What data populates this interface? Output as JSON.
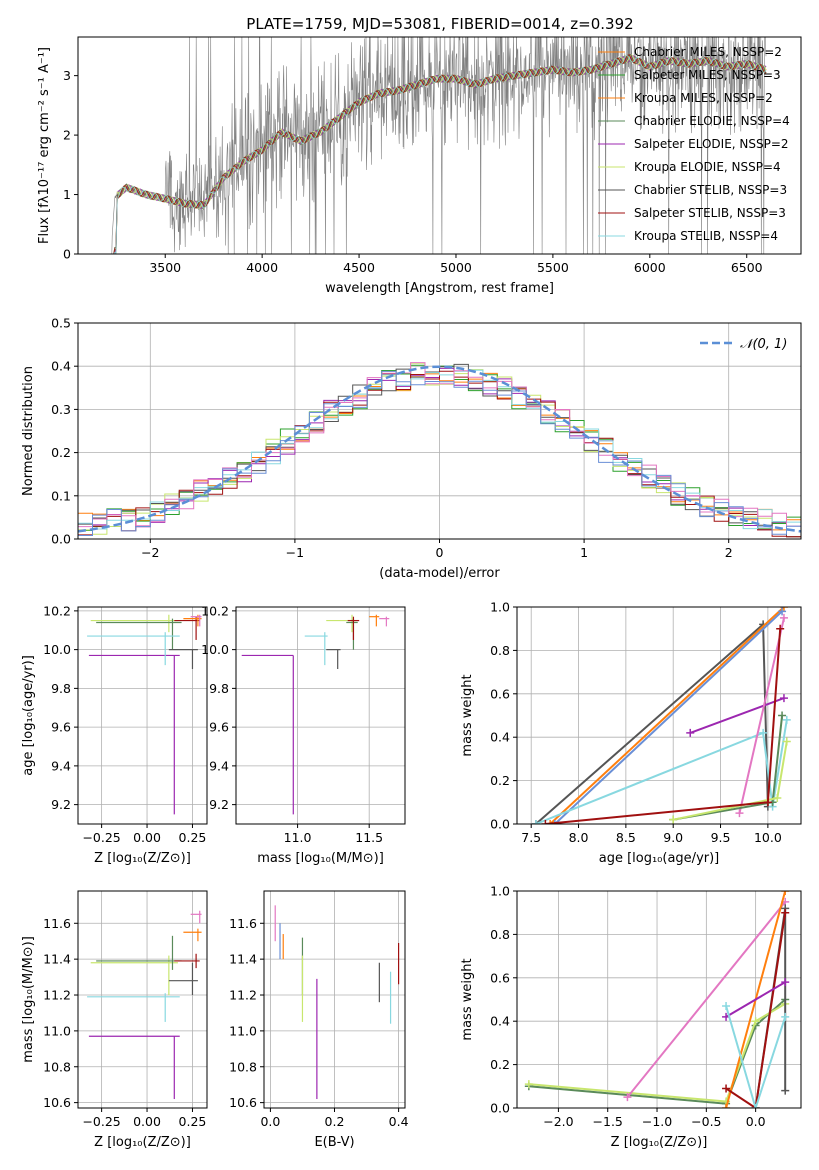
{
  "figure_title": "PLATE=1759, MJD=53081, FIBERID=0014, z=0.392",
  "legend_colors": [
    "#808080",
    "#ff7f0e",
    "#2ca02c",
    "#d62728",
    "#9467bd",
    "#8c564b",
    "#e377c2",
    "#bcbd22",
    "#17becf"
  ],
  "chart_data": [
    {
      "type": "line",
      "name": "spectrum",
      "xlabel": "wavelength [Angstrom, rest frame]",
      "ylabel": "Flux [fλ10⁻¹⁷ erg cm⁻² s⁻¹ A⁻¹]",
      "xlim": [
        3050,
        6780
      ],
      "ylim": [
        0,
        3.65
      ],
      "xticks": [
        3500,
        4000,
        4500,
        5000,
        5500,
        6000,
        6500
      ],
      "yticks": [
        0,
        1,
        2,
        3
      ],
      "grid": false,
      "legend_position": "upper right",
      "series": [
        {
          "name": "Chabrier MILES, N_SSP=2",
          "color": "#ff7f0e"
        },
        {
          "name": "Salpeter MILES, N_SSP=3",
          "color": "#2ca02c"
        },
        {
          "name": "Kroupa MILES, N_SSP=2",
          "color": "#ff7f0e"
        },
        {
          "name": "Chabrier ELODIE, N_SSP=4",
          "color": "#5a8a5a"
        },
        {
          "name": "Salpeter ELODIE, N_SSP=2",
          "color": "#9c27b0"
        },
        {
          "name": "Kroupa ELODIE, N_SSP=4",
          "color": "#c8e66e"
        },
        {
          "name": "Chabrier STELIB, N_SSP=3",
          "color": "#555555"
        },
        {
          "name": "Salpeter STELIB, N_SSP=3",
          "color": "#a01010"
        },
        {
          "name": "Kroupa STELIB, N_SSP=4",
          "color": "#88d8e0"
        }
      ],
      "data_color": "#808080",
      "continuum": {
        "x": [
          3220,
          3240,
          3300,
          3400,
          3500,
          3600,
          3700,
          3800,
          3900,
          4000,
          4100,
          4200,
          4300,
          4400,
          4500,
          4600,
          4700,
          4800,
          4900,
          5000,
          5100,
          5200,
          5300,
          5400,
          5500,
          5600,
          5700,
          5800,
          5900,
          6000,
          6100,
          6200,
          6300,
          6400,
          6500,
          6600
        ],
        "y": [
          0,
          0.95,
          1.12,
          1.0,
          0.93,
          0.85,
          0.82,
          1.28,
          1.55,
          1.75,
          2.05,
          1.9,
          2.05,
          2.3,
          2.55,
          2.7,
          2.75,
          2.85,
          2.95,
          2.95,
          2.85,
          2.95,
          3.0,
          3.05,
          3.1,
          3.05,
          3.1,
          3.2,
          3.3,
          3.15,
          3.25,
          3.2,
          3.25,
          3.15,
          3.2,
          3.1
        ]
      }
    },
    {
      "type": "bar",
      "name": "residual histogram",
      "xlabel": "(data-model)/error",
      "ylabel": "Normed distribution",
      "xlim": [
        -2.5,
        2.5
      ],
      "ylim": [
        0,
        0.5
      ],
      "xticks": [
        -2,
        -1,
        0,
        1,
        2
      ],
      "yticks": [
        0.0,
        0.1,
        0.2,
        0.3,
        0.4,
        0.5
      ],
      "grid": true,
      "legend_position": "upper right",
      "series": [
        {
          "name": "𝒩(0, 1)",
          "color": "#5b8fd6",
          "style": "dashed"
        }
      ],
      "hist_colors": [
        "#ff7f0e",
        "#2ca02c",
        "#9c27b0",
        "#c8e66e",
        "#555555",
        "#a01010",
        "#88d8e0",
        "#e377c2",
        "#6a8fd6"
      ],
      "bin_width": 0.1
    },
    {
      "type": "scatter",
      "name": "age vs Z",
      "xlabel": "Z [log₁₀(Z/Z⊙)]",
      "ylabel": "age  [log₁₀(age/yr)]",
      "xlim": [
        -0.38,
        0.33
      ],
      "ylim": [
        9.1,
        10.22
      ],
      "xticks": [
        -0.25,
        0.0,
        0.25
      ],
      "yticks": [
        9.2,
        9.4,
        9.6,
        9.8,
        10.0,
        10.2
      ],
      "grid": true,
      "points": [
        {
          "x": 0.15,
          "y": 9.97,
          "xerr": [
            0.47,
            0.03
          ],
          "yerr": [
            0.82,
            0.0
          ],
          "color": "#9c27b0"
        },
        {
          "x": 0.12,
          "y": 10.15,
          "xerr": [
            0.43,
            0.05
          ],
          "yerr": [
            0.06,
            0.03
          ],
          "color": "#c8e66e"
        },
        {
          "x": 0.14,
          "y": 10.14,
          "xerr": [
            0.42,
            0.05
          ],
          "yerr": [
            0.14,
            0.02
          ],
          "color": "#5a8a5a"
        },
        {
          "x": 0.1,
          "y": 10.07,
          "xerr": [
            0.43,
            0.08
          ],
          "yerr": [
            0.15,
            0.02
          ],
          "color": "#88d8e0"
        },
        {
          "x": 0.25,
          "y": 10.0,
          "xerr": [
            0.13,
            0.03
          ],
          "yerr": [
            0.1,
            0.0
          ],
          "color": "#555555"
        },
        {
          "x": 0.27,
          "y": 10.15,
          "xerr": [
            0.12,
            0.02
          ],
          "yerr": [
            0.1,
            0.02
          ],
          "color": "#a01010"
        },
        {
          "x": 0.28,
          "y": 10.16,
          "xerr": [
            0.08,
            0.02
          ],
          "yerr": [
            0.04,
            0.02
          ],
          "color": "#ff7f0e"
        },
        {
          "x": 0.29,
          "y": 10.17,
          "xerr": [
            0.05,
            0.01
          ],
          "yerr": [
            0.05,
            0.01
          ],
          "color": "#e377c2"
        }
      ]
    },
    {
      "type": "scatter",
      "name": "age vs mass",
      "xlabel": "mass [log₁₀(M/M⊙)]",
      "ylabel": "",
      "xlim": [
        10.57,
        11.75
      ],
      "ylim": [
        9.1,
        10.22
      ],
      "xticks": [
        11.0,
        11.5
      ],
      "yticks": [
        9.2,
        9.4,
        9.6,
        9.8,
        10.0,
        10.2
      ],
      "grid": true,
      "points": [
        {
          "x": 10.97,
          "y": 9.97,
          "xerr": [
            0.36,
            0.0
          ],
          "yerr": [
            0.82,
            0.0
          ],
          "color": "#9c27b0"
        },
        {
          "x": 11.38,
          "y": 10.15,
          "xerr": [
            0.18,
            0.04
          ],
          "yerr": [
            0.06,
            0.03
          ],
          "color": "#c8e66e"
        },
        {
          "x": 11.39,
          "y": 10.14,
          "xerr": [
            0.05,
            0.03
          ],
          "yerr": [
            0.14,
            0.02
          ],
          "color": "#5a8a5a"
        },
        {
          "x": 11.19,
          "y": 10.07,
          "xerr": [
            0.14,
            0.02
          ],
          "yerr": [
            0.15,
            0.02
          ],
          "color": "#88d8e0"
        },
        {
          "x": 11.28,
          "y": 10.0,
          "xerr": [
            0.08,
            0.02
          ],
          "yerr": [
            0.1,
            0.0
          ],
          "color": "#555555"
        },
        {
          "x": 11.39,
          "y": 10.15,
          "xerr": [
            0.04,
            0.04
          ],
          "yerr": [
            0.1,
            0.02
          ],
          "color": "#a01010"
        },
        {
          "x": 11.55,
          "y": 10.17,
          "xerr": [
            0.05,
            0.02
          ],
          "yerr": [
            0.05,
            0.01
          ],
          "color": "#ff7f0e"
        },
        {
          "x": 11.62,
          "y": 10.16,
          "xerr": [
            0.05,
            0.02
          ],
          "yerr": [
            0.04,
            0.01
          ],
          "color": "#e377c2"
        }
      ]
    },
    {
      "type": "line",
      "name": "mass weight vs age",
      "xlabel": "age  [log₁₀(age/yr)]",
      "ylabel": "mass weight",
      "xlim": [
        7.35,
        10.35
      ],
      "ylim": [
        0,
        1
      ],
      "xticks": [
        7.5,
        8.0,
        8.5,
        9.0,
        9.5,
        10.0
      ],
      "yticks": [
        0.0,
        0.2,
        0.4,
        0.6,
        0.8,
        1.0
      ],
      "grid": true,
      "series": [
        {
          "color": "#555555",
          "points": [
            [
              7.55,
              0.0
            ],
            [
              9.95,
              0.92
            ],
            [
              10.0,
              0.08
            ]
          ]
        },
        {
          "color": "#ff7f0e",
          "points": [
            [
              7.7,
              0.0
            ],
            [
              10.17,
              1.0
            ]
          ]
        },
        {
          "color": "#6a8fd6",
          "points": [
            [
              7.75,
              0.0
            ],
            [
              10.15,
              0.98
            ]
          ]
        },
        {
          "color": "#9c27b0",
          "points": [
            [
              9.18,
              0.42
            ],
            [
              10.17,
              0.58
            ]
          ]
        },
        {
          "color": "#88d8e0",
          "points": [
            [
              7.55,
              0.0
            ],
            [
              9.95,
              0.42
            ],
            [
              10.05,
              0.08
            ],
            [
              10.2,
              0.48
            ]
          ]
        },
        {
          "color": "#e377c2",
          "points": [
            [
              9.7,
              0.05
            ],
            [
              10.17,
              0.95
            ]
          ]
        },
        {
          "color": "#5a8a5a",
          "points": [
            [
              9.0,
              0.02
            ],
            [
              10.05,
              0.1
            ],
            [
              10.15,
              0.5
            ]
          ]
        },
        {
          "color": "#c8e66e",
          "points": [
            [
              9.0,
              0.02
            ],
            [
              10.1,
              0.12
            ],
            [
              10.2,
              0.38
            ]
          ]
        },
        {
          "color": "#a01010",
          "points": [
            [
              7.65,
              0.0
            ],
            [
              10.0,
              0.1
            ],
            [
              10.13,
              0.9
            ]
          ]
        }
      ]
    },
    {
      "type": "scatter",
      "name": "mass vs Z",
      "xlabel": "Z [log₁₀(Z/Z⊙)]",
      "ylabel": "mass [log₁₀(M/M⊙)]",
      "xlim": [
        -0.38,
        0.33
      ],
      "ylim": [
        10.57,
        11.78
      ],
      "xticks": [
        -0.25,
        0.0,
        0.25
      ],
      "yticks": [
        10.6,
        10.8,
        11.0,
        11.2,
        11.4,
        11.6
      ],
      "grid": true,
      "points": [
        {
          "x": 0.15,
          "y": 10.97,
          "xerr": [
            0.47,
            0.03
          ],
          "yerr": [
            0.35,
            0.0
          ],
          "color": "#9c27b0"
        },
        {
          "x": 0.12,
          "y": 11.38,
          "xerr": [
            0.43,
            0.05
          ],
          "yerr": [
            0.18,
            0.04
          ],
          "color": "#c8e66e"
        },
        {
          "x": 0.14,
          "y": 11.39,
          "xerr": [
            0.42,
            0.05
          ],
          "yerr": [
            0.05,
            0.14
          ],
          "color": "#5a8a5a"
        },
        {
          "x": 0.1,
          "y": 11.19,
          "xerr": [
            0.43,
            0.08
          ],
          "yerr": [
            0.14,
            0.02
          ],
          "color": "#88d8e0"
        },
        {
          "x": 0.25,
          "y": 11.28,
          "xerr": [
            0.13,
            0.03
          ],
          "yerr": [
            0.08,
            0.1
          ],
          "color": "#555555"
        },
        {
          "x": 0.27,
          "y": 11.39,
          "xerr": [
            0.12,
            0.02
          ],
          "yerr": [
            0.04,
            0.04
          ],
          "color": "#a01010"
        },
        {
          "x": 0.28,
          "y": 11.55,
          "xerr": [
            0.08,
            0.02
          ],
          "yerr": [
            0.05,
            0.02
          ],
          "color": "#ff7f0e"
        },
        {
          "x": 0.29,
          "y": 11.65,
          "xerr": [
            0.05,
            0.01
          ],
          "yerr": [
            0.05,
            0.02
          ],
          "color": "#e377c2"
        }
      ]
    },
    {
      "type": "scatter",
      "name": "mass vs E(B-V)",
      "xlabel": "E(B-V)",
      "ylabel": "",
      "xlim": [
        -0.02,
        0.42
      ],
      "ylim": [
        10.57,
        11.78
      ],
      "xticks": [
        0.0,
        0.2,
        0.4
      ],
      "yticks": [
        10.6,
        10.8,
        11.0,
        11.2,
        11.4,
        11.6
      ],
      "grid": true,
      "points": [
        {
          "x": 0.015,
          "y": 11.55,
          "yerr": [
            0.05,
            0.15
          ],
          "color": "#e377c2"
        },
        {
          "x": 0.03,
          "y": 11.5,
          "yerr": [
            0.1,
            0.1
          ],
          "color": "#6a8fd6"
        },
        {
          "x": 0.04,
          "y": 11.48,
          "yerr": [
            0.08,
            0.06
          ],
          "color": "#ff7f0e"
        },
        {
          "x": 0.1,
          "y": 11.38,
          "yerr": [
            0.18,
            0.14
          ],
          "color": "#5a8a5a"
        },
        {
          "x": 0.1,
          "y": 11.3,
          "yerr": [
            0.25,
            0.12
          ],
          "color": "#c8e66e"
        },
        {
          "x": 0.145,
          "y": 10.97,
          "yerr": [
            0.35,
            0.32
          ],
          "color": "#9c27b0"
        },
        {
          "x": 0.34,
          "y": 11.28,
          "yerr": [
            0.12,
            0.1
          ],
          "color": "#555555"
        },
        {
          "x": 0.375,
          "y": 11.19,
          "yerr": [
            0.15,
            0.14
          ],
          "color": "#88d8e0"
        },
        {
          "x": 0.4,
          "y": 11.39,
          "yerr": [
            0.13,
            0.1
          ],
          "color": "#a01010"
        }
      ]
    },
    {
      "type": "line",
      "name": "mass weight vs Z",
      "xlabel": "Z [log₁₀(Z/Z⊙)]",
      "ylabel": "mass weight",
      "xlim": [
        -2.42,
        0.46
      ],
      "ylim": [
        0,
        1
      ],
      "xticks": [
        -2.0,
        -1.5,
        -1.0,
        -0.5,
        0.0
      ],
      "yticks": [
        0.0,
        0.2,
        0.4,
        0.6,
        0.8,
        1.0
      ],
      "grid": true,
      "series": [
        {
          "color": "#5a8a5a",
          "points": [
            [
              -2.3,
              0.1
            ],
            [
              -0.3,
              0.02
            ],
            [
              0.0,
              0.38
            ],
            [
              0.3,
              0.5
            ]
          ]
        },
        {
          "color": "#c8e66e",
          "points": [
            [
              -2.3,
              0.11
            ],
            [
              -0.3,
              0.03
            ],
            [
              0.0,
              0.4
            ],
            [
              0.3,
              0.48
            ]
          ]
        },
        {
          "color": "#e377c2",
          "points": [
            [
              -1.3,
              0.05
            ],
            [
              0.3,
              0.95
            ]
          ]
        },
        {
          "color": "#ff7f0e",
          "points": [
            [
              -0.3,
              0.0
            ],
            [
              0.3,
              1.0
            ]
          ]
        },
        {
          "color": "#555555",
          "points": [
            [
              0.0,
              0.0
            ],
            [
              0.3,
              0.92
            ],
            [
              0.3,
              0.08
            ]
          ]
        },
        {
          "color": "#a01010",
          "points": [
            [
              -0.3,
              0.09
            ],
            [
              0.0,
              0.0
            ],
            [
              0.3,
              0.9
            ]
          ]
        },
        {
          "color": "#9c27b0",
          "points": [
            [
              -0.3,
              0.42
            ],
            [
              0.3,
              0.58
            ]
          ]
        },
        {
          "color": "#88d8e0",
          "points": [
            [
              -0.3,
              0.47
            ],
            [
              0.0,
              0.0
            ],
            [
              0.3,
              0.42
            ]
          ]
        }
      ]
    }
  ]
}
